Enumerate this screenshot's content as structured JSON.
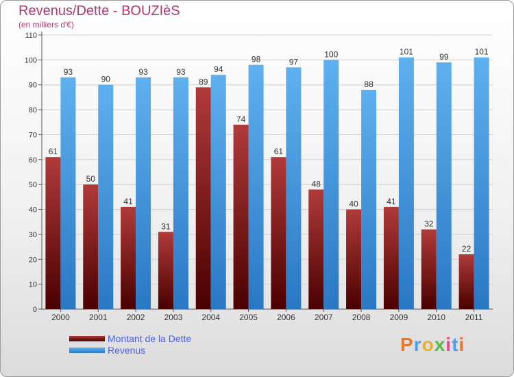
{
  "chart_data": {
    "type": "bar",
    "title": "Revenus/Dette - BOUZIèS",
    "subtitle": "(en milliers d'€)",
    "categories": [
      "2000",
      "2001",
      "2002",
      "2003",
      "2004",
      "2005",
      "2006",
      "2007",
      "2008",
      "2009",
      "2010",
      "2011"
    ],
    "series": [
      {
        "name": "Montant de la Dette",
        "color": "#7a1616",
        "values": [
          61,
          50,
          41,
          31,
          89,
          74,
          61,
          48,
          40,
          41,
          32,
          22
        ]
      },
      {
        "name": "Revenus",
        "color": "#4a9fe6",
        "values": [
          93,
          90,
          93,
          93,
          94,
          98,
          97,
          100,
          88,
          101,
          99,
          101
        ]
      }
    ],
    "ylim": [
      0,
      110
    ],
    "yticks": [
      0,
      10,
      20,
      30,
      40,
      50,
      60,
      70,
      80,
      90,
      100,
      110
    ],
    "grid": true,
    "legend": "bottom-left"
  },
  "logo": {
    "text": "Proxiti",
    "colors": [
      "#e8762c",
      "#4a9fe6",
      "#e8b12c",
      "#5ab84a",
      "#e84a8a",
      "#4a9fe6",
      "#e8762c"
    ]
  }
}
